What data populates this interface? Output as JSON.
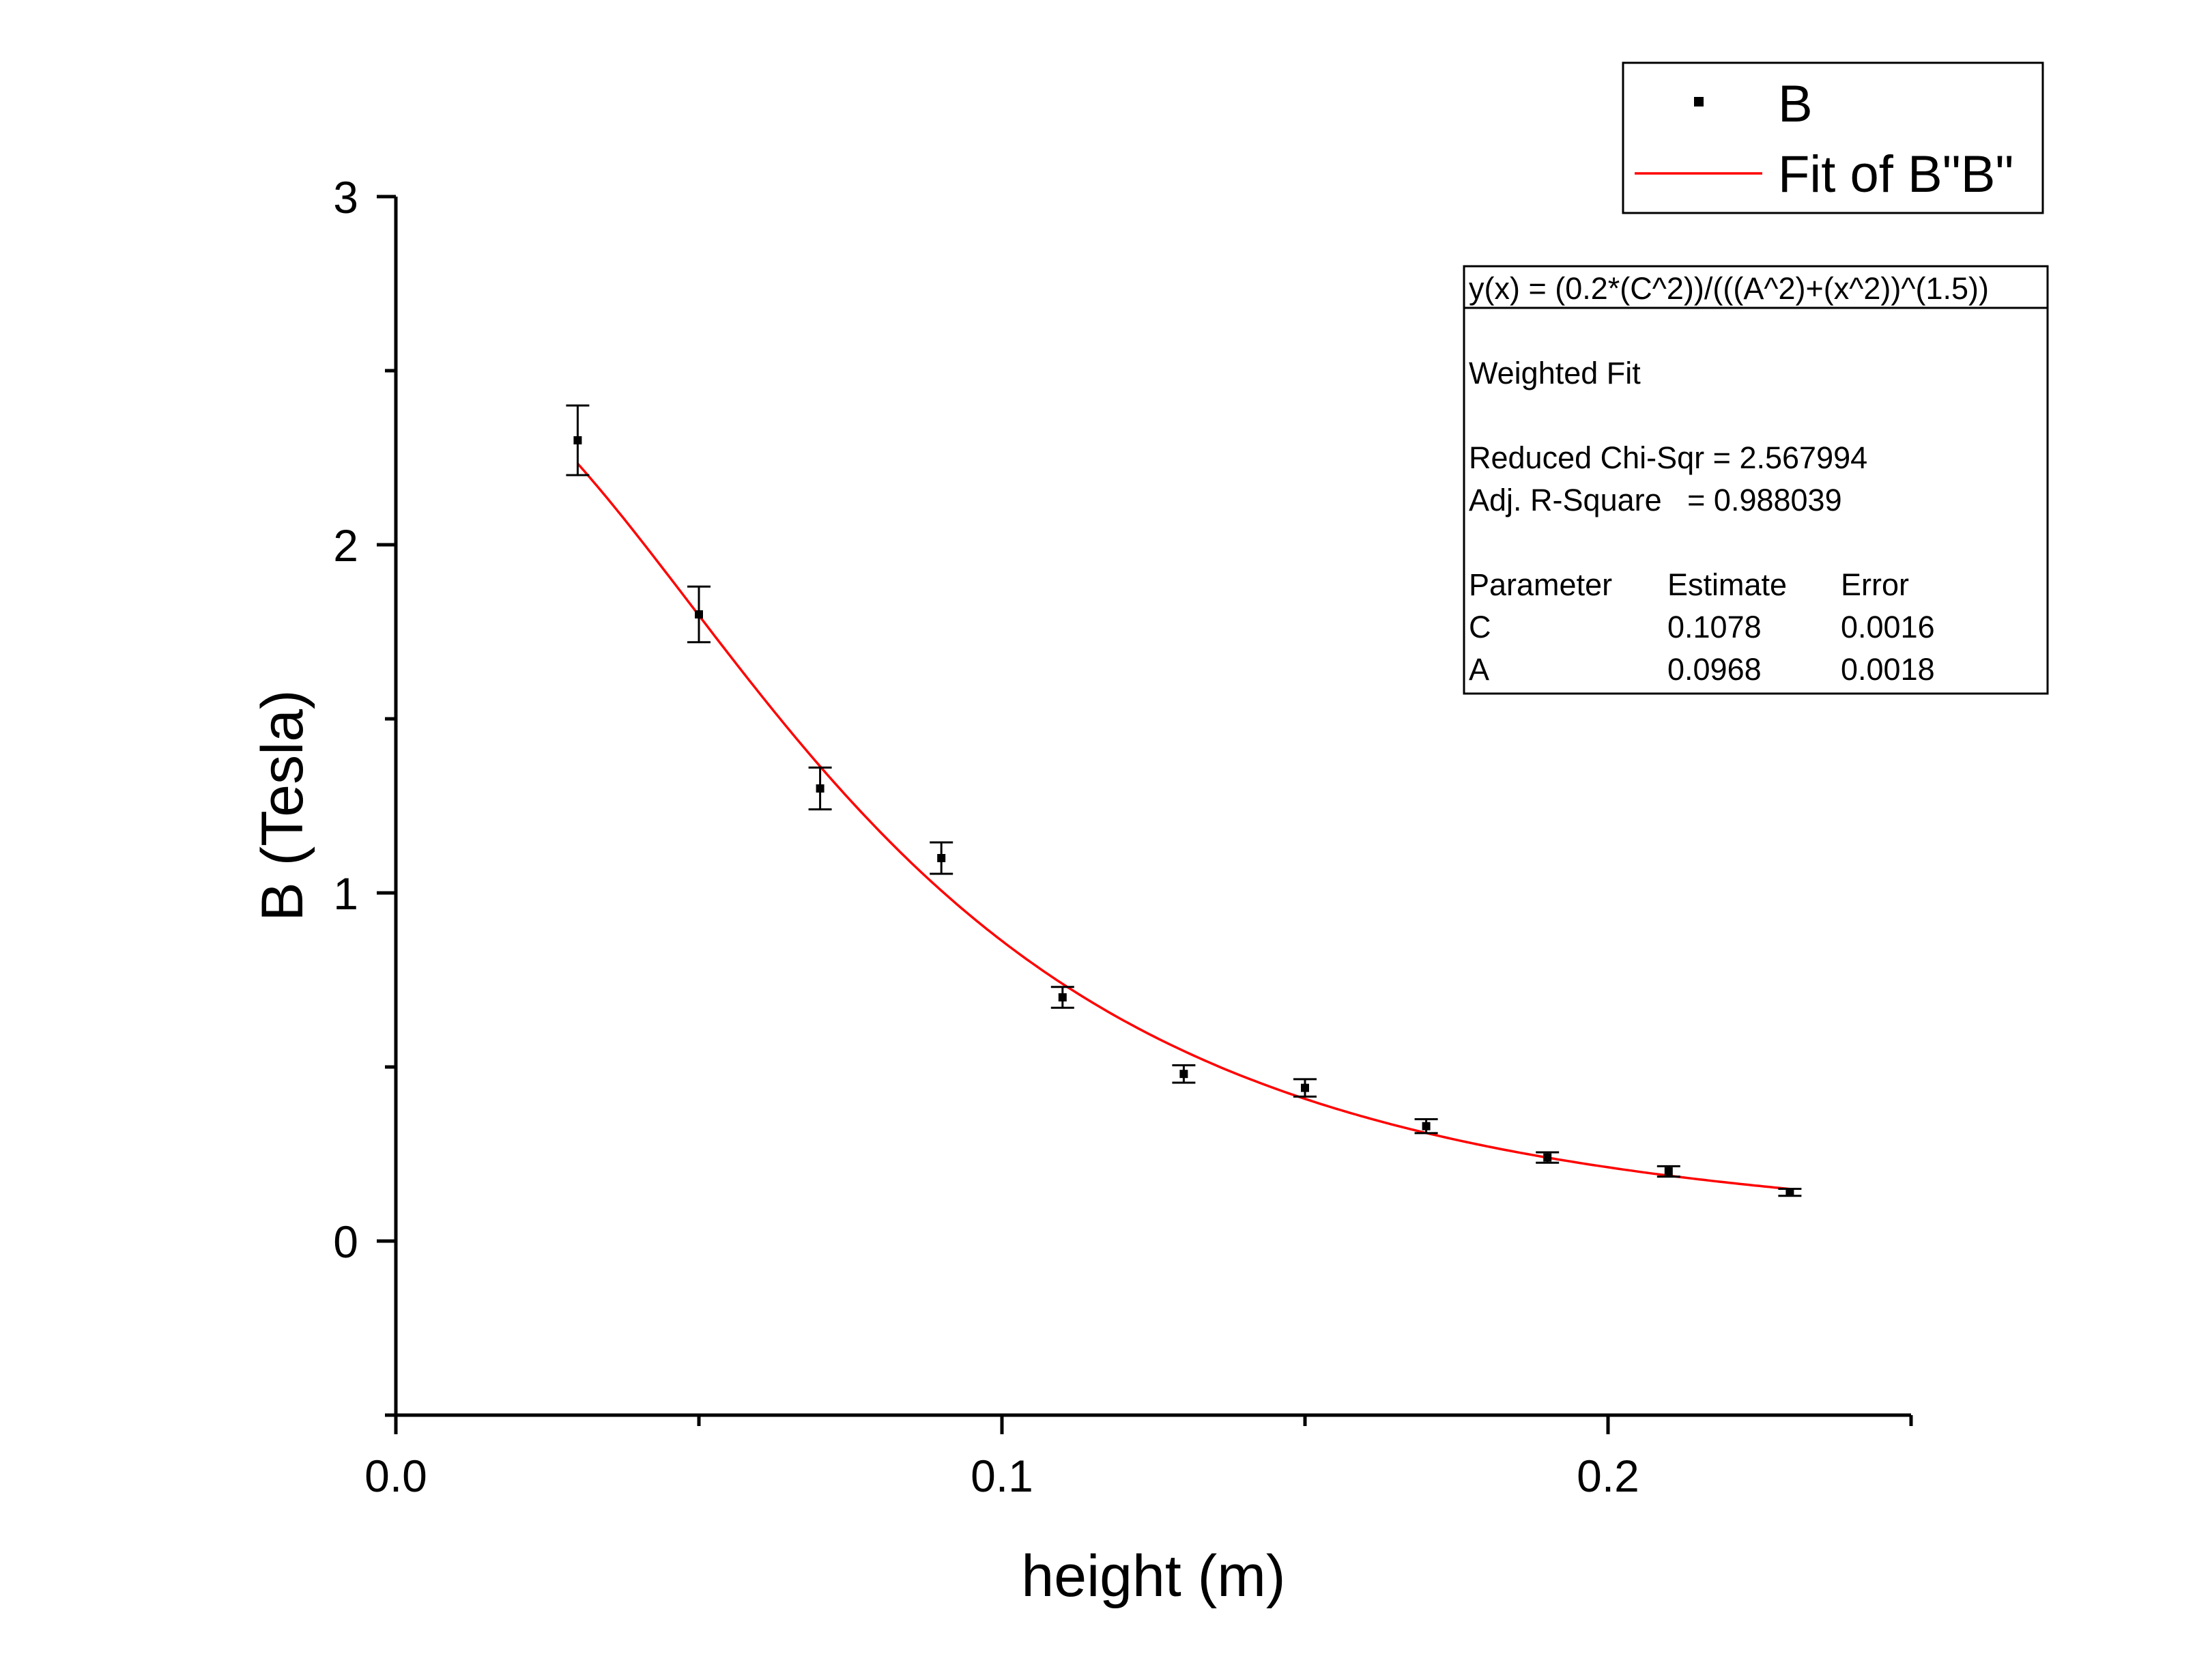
{
  "chart_data": {
    "type": "scatter",
    "title": "",
    "xlabel": "height (m)",
    "ylabel": "B (Tesla)",
    "xlim": [
      0,
      0.25
    ],
    "ylim": [
      -0.5,
      3
    ],
    "xticks": [
      0.0,
      0.1,
      0.2
    ],
    "xtick_labels": [
      "0.0",
      "0.1",
      "0.2"
    ],
    "yticks": [
      0,
      1,
      2,
      3
    ],
    "ytick_labels": [
      "0",
      "1",
      "2",
      "3"
    ],
    "grid": false,
    "legend_position": "top-right",
    "series": [
      {
        "name": "B",
        "kind": "points",
        "color": "#000000",
        "x": [
          0.03,
          0.05,
          0.07,
          0.09,
          0.11,
          0.13,
          0.15,
          0.17,
          0.19,
          0.21,
          0.23
        ],
        "y": [
          2.3,
          1.8,
          1.3,
          1.1,
          0.7,
          0.48,
          0.44,
          0.33,
          0.24,
          0.2,
          0.14
        ],
        "error": [
          0.1,
          0.08,
          0.06,
          0.045,
          0.03,
          0.025,
          0.025,
          0.02,
          0.015,
          0.015,
          0.01
        ]
      },
      {
        "name": "Fit of B\"B\"",
        "kind": "fit",
        "color": "#ff0000",
        "formula": "(0.2*(C^2))/(((A^2)+(x^2))^(1.5))",
        "parameters": {
          "C": 0.1078,
          "A": 0.0968
        },
        "x_range": [
          0.03,
          0.23
        ]
      }
    ],
    "legend": [
      "B",
      "Fit of B\"B\""
    ],
    "fit_report": {
      "equation": "y(x) = (0.2*(C^2))/(((A^2)+(x^2))^(1.5))",
      "method": "Weighted Fit",
      "reduced_chi_sqr_label": "Reduced Chi-Sqr = 2.567994",
      "adj_r_square_label": "Adj. R-Square   = 0.988039",
      "table_headers": [
        "Parameter",
        "Estimate",
        "Error"
      ],
      "table_rows": [
        [
          "C",
          "0.1078",
          "0.0016"
        ],
        [
          "A",
          "0.0968",
          "0.0018"
        ]
      ]
    }
  }
}
